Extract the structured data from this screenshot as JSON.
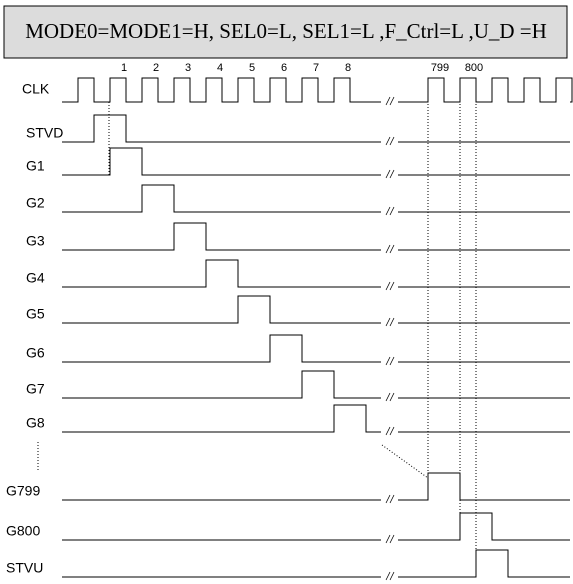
{
  "header": {
    "title": "MODE0=MODE1=H, SEL0=L, SEL1=L ,F_Ctrl=L ,U_D =H"
  },
  "clock_numbers": [
    "1",
    "2",
    "3",
    "4",
    "5",
    "6",
    "7",
    "8",
    "799",
    "800"
  ],
  "signals": [
    "CLK",
    "STVD",
    "G1",
    "G2",
    "G3",
    "G4",
    "G5",
    "G6",
    "G7",
    "G8",
    "G799",
    "G800",
    "STVU"
  ]
}
